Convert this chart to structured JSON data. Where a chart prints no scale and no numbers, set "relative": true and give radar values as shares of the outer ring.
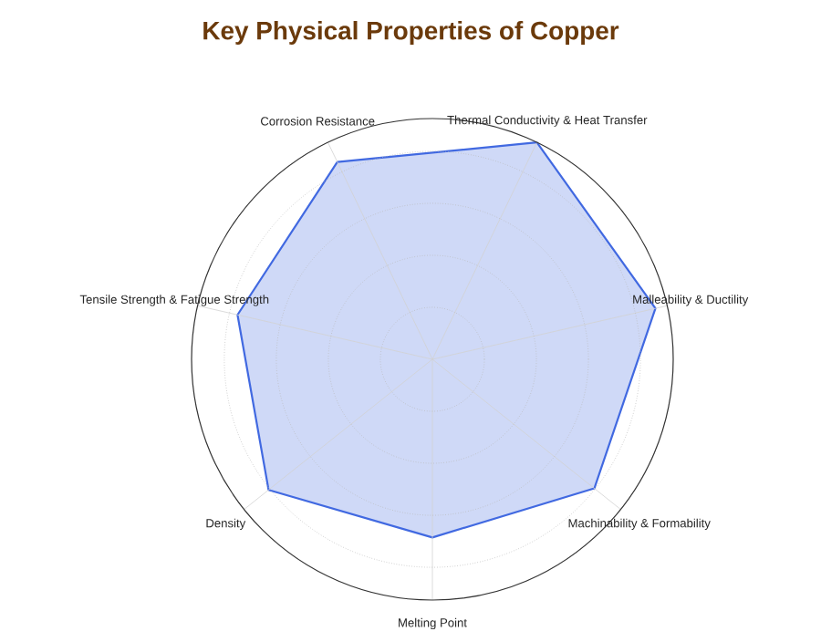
{
  "chart_data": {
    "type": "radar",
    "title": "Key Physical Properties of Copper",
    "categories": [
      "Thermal Conductivity & Heat Transfer",
      "Malleability & Ductility",
      "Machinability & Formability",
      "Melting Point",
      "Density",
      "Tensile Strength & Fatigue Strength",
      "Corrosion Resistance"
    ],
    "series": [
      {
        "color": "#4169e1",
        "values": [
          1.0,
          0.95,
          0.86,
          0.74,
          0.87,
          0.83,
          0.91
        ]
      }
    ],
    "relative": true,
    "grid": true
  }
}
